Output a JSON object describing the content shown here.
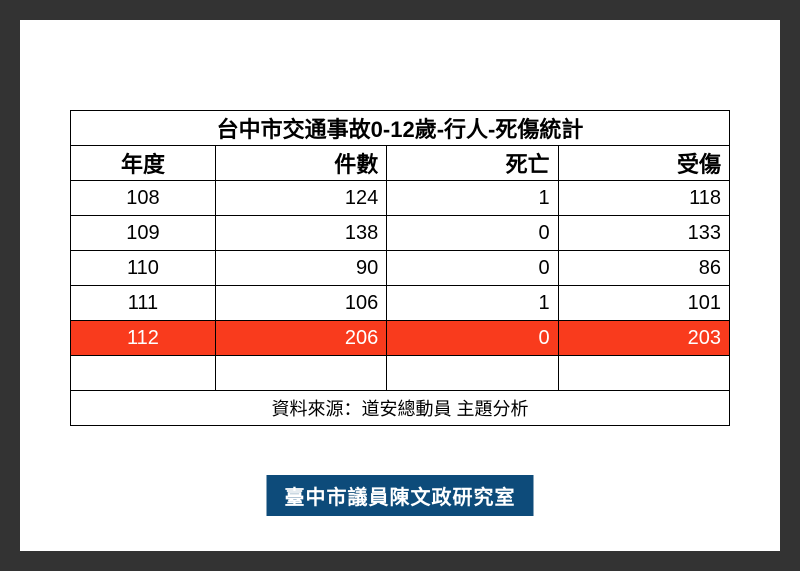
{
  "table": {
    "title": "台中市交通事故0-12歲-行人-死傷統計",
    "columns": [
      "年度",
      "件數",
      "死亡",
      "受傷"
    ],
    "rows": [
      {
        "year": "108",
        "count": "124",
        "death": "1",
        "injury": "118",
        "highlighted": false
      },
      {
        "year": "109",
        "count": "138",
        "death": "0",
        "injury": "133",
        "highlighted": false
      },
      {
        "year": "110",
        "count": "90",
        "death": "0",
        "injury": "86",
        "highlighted": false
      },
      {
        "year": "111",
        "count": "106",
        "death": "1",
        "injury": "101",
        "highlighted": false
      },
      {
        "year": "112",
        "count": "206",
        "death": "0",
        "injury": "203",
        "highlighted": true
      }
    ],
    "empty_row": true,
    "source": "資料來源：道安總動員 主題分析",
    "colors": {
      "highlight_bg": "#f93b1d",
      "highlight_text": "#ffffff",
      "border": "#000000",
      "page_bg": "#ffffff",
      "outer_bg": "#333333",
      "banner_bg": "#0d4b7a",
      "banner_text": "#ffffff"
    },
    "font_sizes": {
      "title": 22,
      "header": 22,
      "cell": 20,
      "source": 18,
      "banner": 20
    }
  },
  "footer": {
    "label": "臺中市議員陳文政研究室"
  }
}
